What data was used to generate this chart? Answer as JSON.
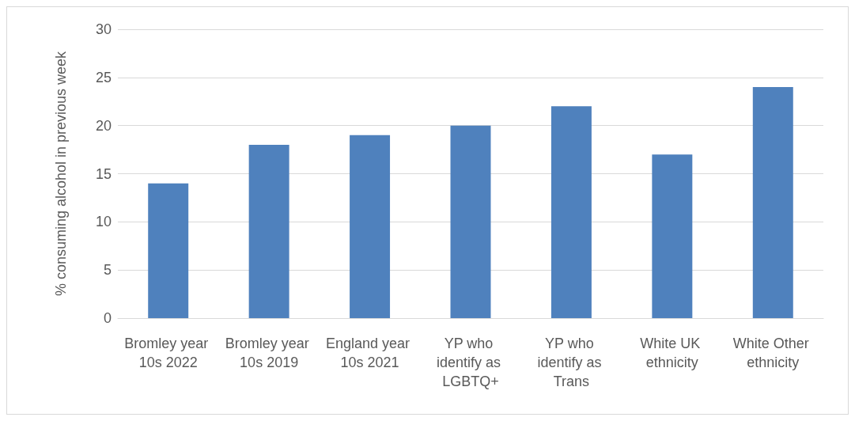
{
  "chart_data": {
    "type": "bar",
    "ylabel": "% consuming alcohol in previous week",
    "categories": [
      "Bromley year 10s 2022",
      "Bromley year 10s 2019",
      "England year 10s 2021",
      "YP who identify as LGBTQ+",
      "YP who identify as Trans",
      "White UK ethnicity",
      "White Other ethnicity"
    ],
    "values": [
      14,
      18,
      19,
      20,
      22,
      17,
      24
    ],
    "color": "#4f81bd",
    "ylim": [
      0,
      30
    ],
    "yticks": [
      0,
      5,
      10,
      15,
      20,
      25,
      30
    ],
    "grid": "y"
  }
}
